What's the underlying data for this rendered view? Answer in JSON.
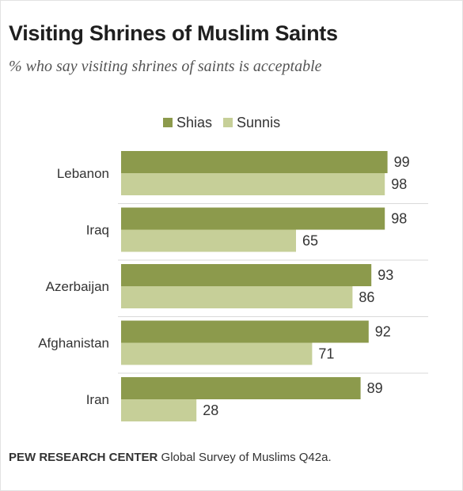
{
  "title": "Visiting Shrines of Muslim Saints",
  "subtitle": "% who say visiting shrines of saints is acceptable",
  "footer": {
    "source": "PEW RESEARCH CENTER",
    "note": "Global Survey of Muslims Q42a."
  },
  "colors": {
    "shias": "#8c9a4c",
    "sunnis": "#c6cf98",
    "separator": "#dadada"
  },
  "chart_data": {
    "type": "bar",
    "orientation": "horizontal",
    "categories": [
      "Lebanon",
      "Iraq",
      "Azerbaijan",
      "Afghanistan",
      "Iran"
    ],
    "series": [
      {
        "name": "Shias",
        "values": [
          99,
          98,
          93,
          92,
          89
        ]
      },
      {
        "name": "Sunnis",
        "values": [
          98,
          65,
          86,
          71,
          28
        ]
      }
    ],
    "xlim": [
      0,
      100
    ],
    "grid": false,
    "legend": "top"
  }
}
